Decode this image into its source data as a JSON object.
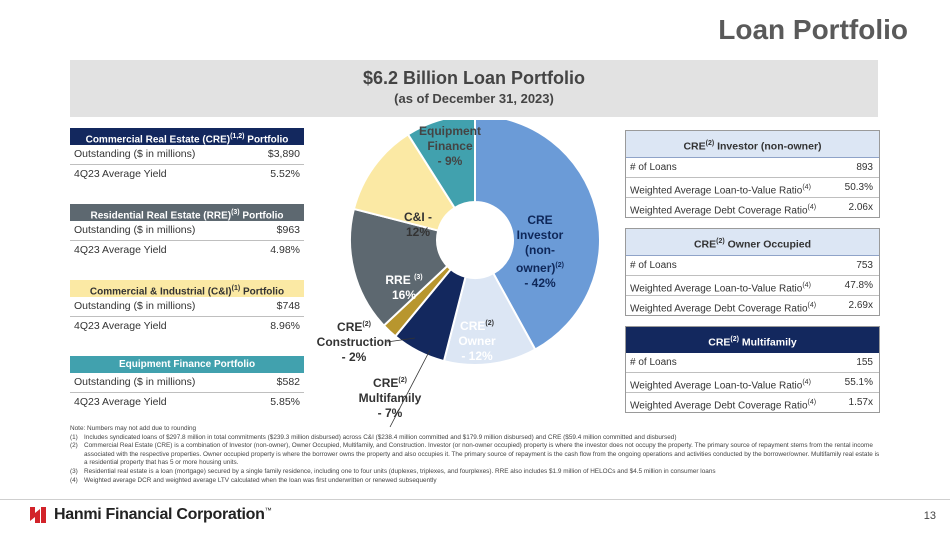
{
  "page_title": "Loan Portfolio",
  "banner": {
    "title": "$6.2 Billion Loan Portfolio",
    "subtitle": "(as of December 31, 2023)"
  },
  "left_tables": [
    {
      "title": "Commercial Real Estate (CRE)",
      "title_sup": "(1,2)",
      "title_suffix": " Portfolio",
      "rows": [
        {
          "label": "Outstanding ($ in millions)",
          "value": "$3,890"
        },
        {
          "label": "4Q23 Average Yield",
          "value": "5.52%"
        }
      ]
    },
    {
      "title": "Residential Real Estate (RRE)",
      "title_sup": "(3)",
      "title_suffix": " Portfolio",
      "rows": [
        {
          "label": "Outstanding ($ in millions)",
          "value": "$963"
        },
        {
          "label": "4Q23 Average Yield",
          "value": "4.98%"
        }
      ]
    },
    {
      "title": "Commercial & Industrial (C&I)",
      "title_sup": "(1)",
      "title_suffix": " Portfolio",
      "rows": [
        {
          "label": "Outstanding ($ in millions)",
          "value": "$748"
        },
        {
          "label": "4Q23 Average Yield",
          "value": "8.96%"
        }
      ]
    },
    {
      "title": "Equipment Finance Portfolio",
      "title_sup": "",
      "title_suffix": "",
      "rows": [
        {
          "label": "Outstanding ($ in millions)",
          "value": "$582"
        },
        {
          "label": "4Q23 Average Yield",
          "value": "5.85%"
        }
      ]
    }
  ],
  "right_tables": [
    {
      "pre": "CRE",
      "sup": "(2)",
      "post": " Investor (non-owner)",
      "rows": [
        {
          "label": "# of Loans",
          "sup": "",
          "value": "893"
        },
        {
          "label": "Weighted Average Loan-to-Value Ratio",
          "sup": "(4)",
          "value": "50.3%"
        },
        {
          "label": "Weighted Average Debt Coverage Ratio",
          "sup": "(4)",
          "value": "2.06x"
        }
      ]
    },
    {
      "pre": "CRE",
      "sup": "(2)",
      "post": " Owner Occupied",
      "rows": [
        {
          "label": "# of Loans",
          "sup": "",
          "value": "753"
        },
        {
          "label": "Weighted Average Loan-to-Value Ratio",
          "sup": "(4)",
          "value": "47.8%"
        },
        {
          "label": "Weighted Average Debt Coverage Ratio",
          "sup": "(4)",
          "value": "2.69x"
        }
      ]
    },
    {
      "pre": "CRE",
      "sup": "(2)",
      "post": " Multifamily",
      "rows": [
        {
          "label": "# of Loans",
          "sup": "",
          "value": "155"
        },
        {
          "label": "Weighted Average Loan-to-Value Ratio",
          "sup": "(4)",
          "value": "55.1%"
        },
        {
          "label": "Weighted Average Debt Coverage Ratio",
          "sup": "(4)",
          "value": "1.57x"
        }
      ]
    }
  ],
  "chart_data": {
    "type": "pie",
    "title": "",
    "slices": [
      {
        "name": "CRE Investor (non-owner)",
        "value": 42,
        "color": "#6b9bd7"
      },
      {
        "name": "CRE Owner",
        "value": 12,
        "color": "#dce6f4"
      },
      {
        "name": "CRE Multifamily",
        "value": 7,
        "color": "#13285e"
      },
      {
        "name": "CRE Construction",
        "value": 2,
        "color": "#b8962e"
      },
      {
        "name": "RRE",
        "value": 16,
        "color": "#5d6870"
      },
      {
        "name": "C&I",
        "value": 12,
        "color": "#fbe9a4"
      },
      {
        "name": "Equipment Finance",
        "value": 9,
        "color": "#41a1ae"
      }
    ],
    "labels": {
      "equipment": [
        "Equipment",
        "Finance",
        "- 9%"
      ],
      "cni": [
        "C&I -",
        "12%"
      ],
      "cre_investor": [
        "CRE",
        "Investor",
        "(non-",
        "owner)",
        "- 42%"
      ],
      "cre_investor_sup": "(2)",
      "rre": [
        "RRE",
        "16%"
      ],
      "rre_sup": "(3)",
      "cre_owner": [
        "CRE",
        "Owner",
        "- 12%"
      ],
      "cre_owner_sup": "(2)",
      "cre_construction": [
        "CRE",
        "Construction",
        "- 2%"
      ],
      "cre_construction_sup": "(2)",
      "cre_multifamily": [
        "CRE",
        "Multifamily",
        "- 7%"
      ],
      "cre_multifamily_sup": "(2)"
    }
  },
  "notes": {
    "intro": "Note: Numbers may not add due to rounding",
    "items": [
      {
        "key": "(1)",
        "text": "Includes syndicated loans of $297.8 million in total commitments ($239.3 million disbursed) across C&I ($238.4 million committed and $179.9 million disbursed) and CRE ($59.4 million committed and disbursed)"
      },
      {
        "key": "(2)",
        "text": "Commercial Real Estate (CRE) is a combination of Investor (non-owner), Owner Occupied, Multifamily, and Construction. Investor (or non-owner occupied) property is where the investor does not occupy the property. The primary source of repayment stems from the rental income associated with the respective properties. Owner occupied property is where the borrower owns the property and also occupies it. The primary source of repayment is the cash flow from the ongoing operations and activities conducted by the borrower/owner. Multifamily real estate is a residential property that has 5 or more housing units."
      },
      {
        "key": "(3)",
        "text": "Residential real estate is a loan (mortgage) secured by a single family residence, including one to four units (duplexes, triplexes, and fourplexes). RRE also includes $1.9 million of HELOCs and $4.5 million in consumer loans"
      },
      {
        "key": "(4)",
        "text": "Weighted average DCR and weighted average LTV calculated when the loan was first underwritten or renewed subsequently"
      }
    ]
  },
  "footer": {
    "company": "Hanmi Financial Corporation",
    "trademark": "™",
    "page": "13",
    "logo_icon": "hanmi-logo-icon"
  }
}
